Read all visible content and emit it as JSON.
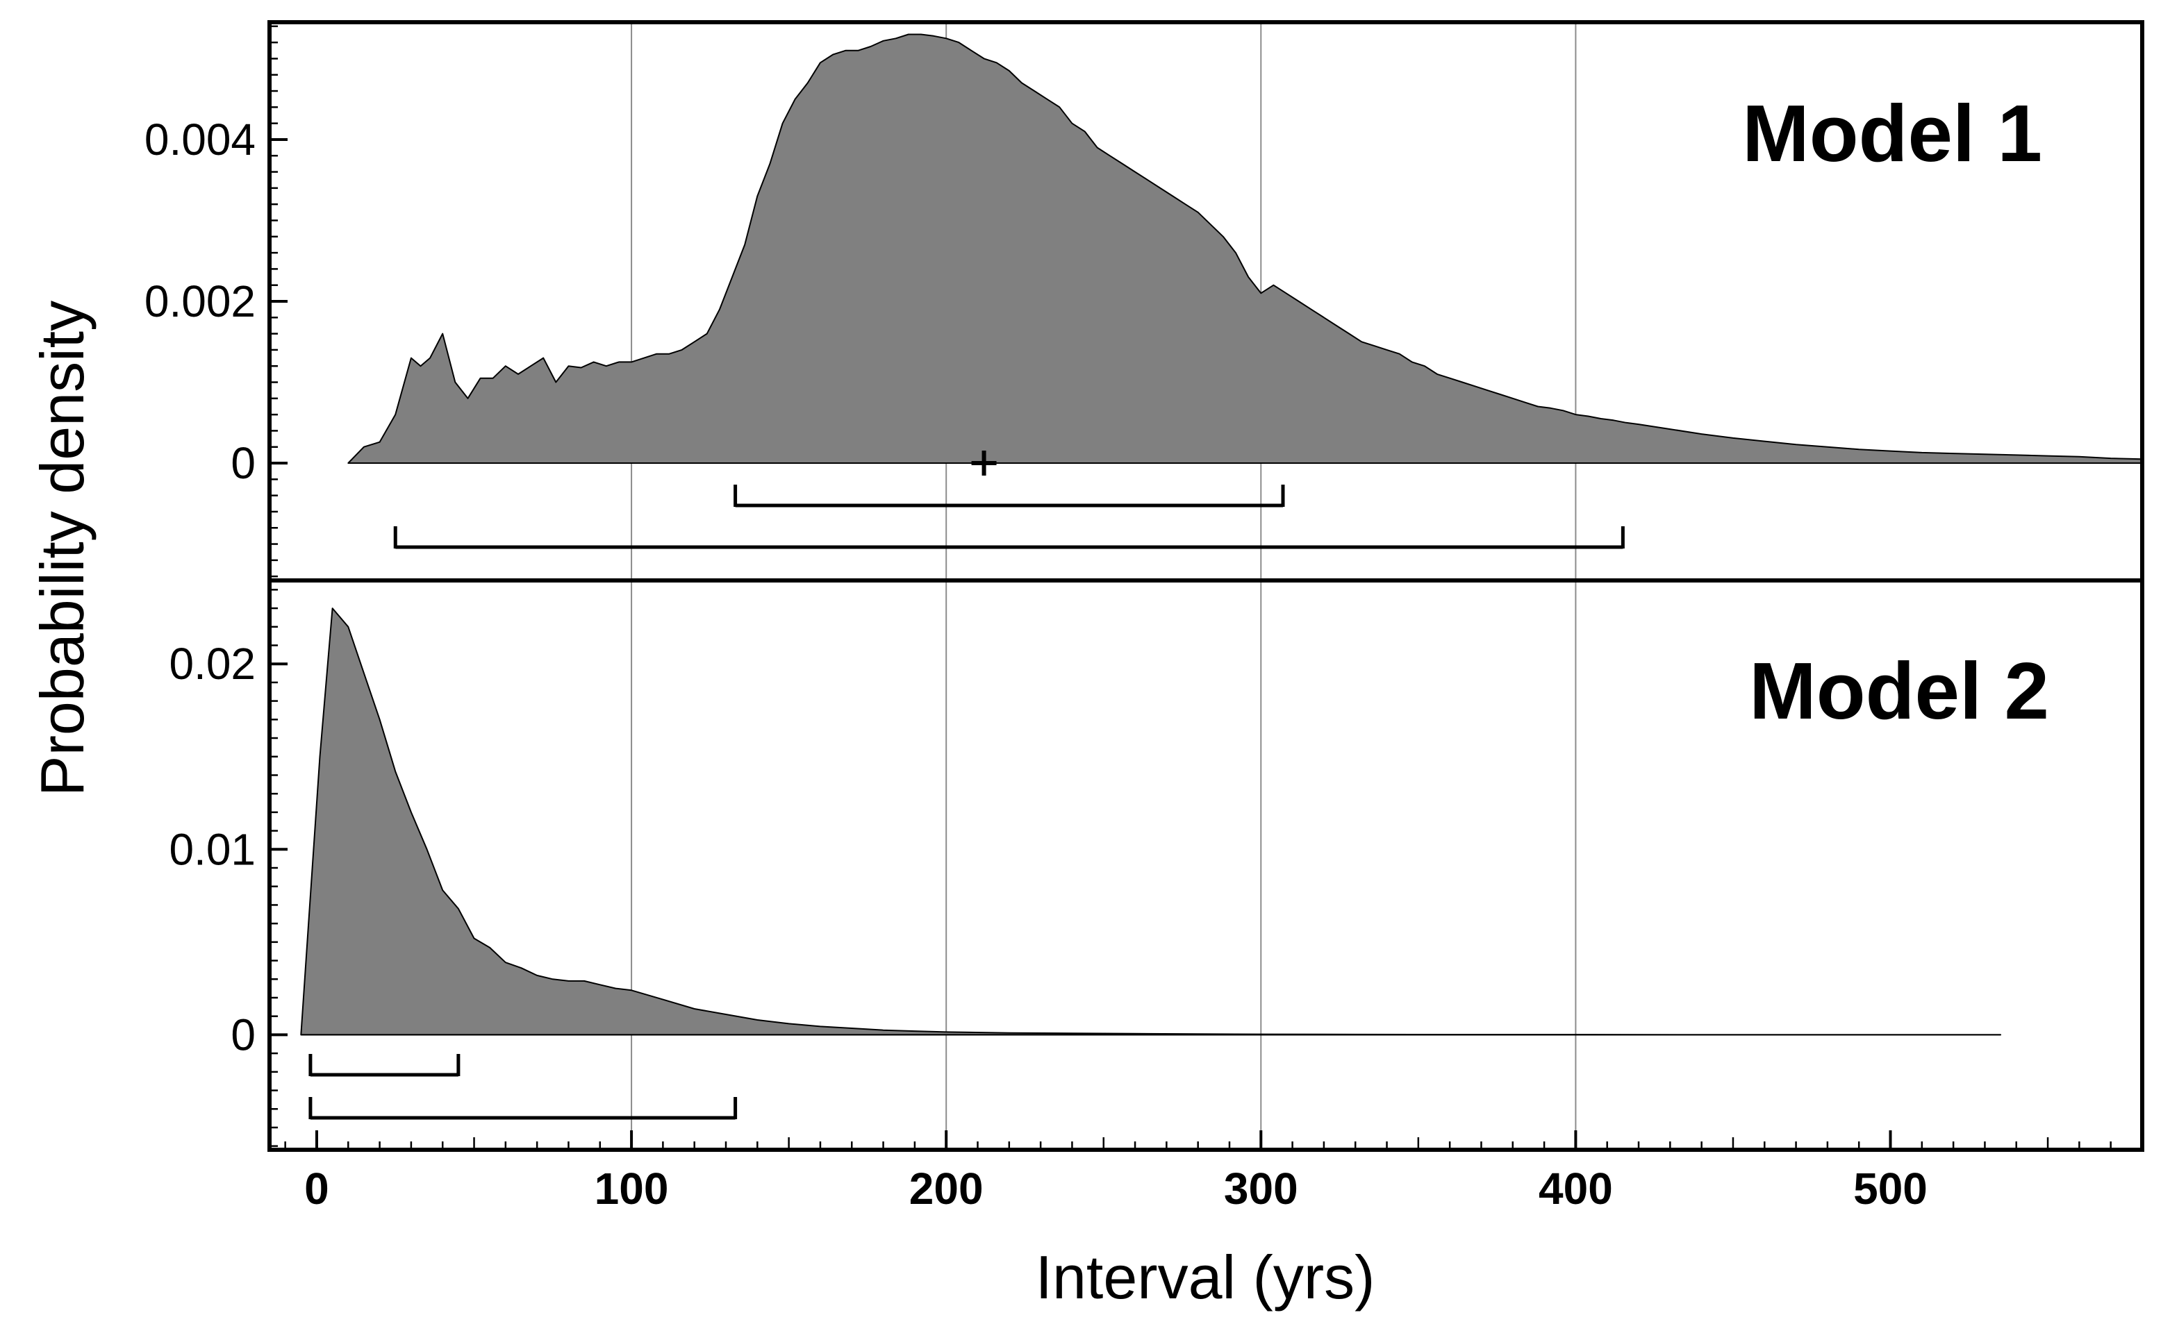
{
  "chart_data": {
    "type": "area",
    "xlabel": "Interval (yrs)",
    "ylabel": "Probability density",
    "xlim": [
      -15,
      580
    ],
    "x_ticks": [
      0,
      100,
      200,
      300,
      400,
      500
    ],
    "x_tick_labels": [
      "0",
      "100",
      "200",
      "300",
      "400",
      "500"
    ],
    "vertical_grid": [
      100,
      200,
      300,
      400
    ],
    "panels": [
      {
        "label": "Model 1",
        "ylim": [
          -0.00145,
          0.00545
        ],
        "y_ticks": [
          0,
          0.002,
          0.004
        ],
        "y_tick_labels": [
          "0",
          "0.002",
          "0.004"
        ],
        "fill_color": "#808080",
        "series": {
          "x": [
            10,
            15,
            20,
            25,
            30,
            33,
            36,
            40,
            44,
            48,
            52,
            56,
            60,
            64,
            68,
            72,
            76,
            80,
            84,
            88,
            92,
            96,
            100,
            104,
            108,
            112,
            116,
            120,
            124,
            128,
            132,
            136,
            140,
            144,
            148,
            152,
            156,
            160,
            164,
            168,
            172,
            176,
            180,
            184,
            188,
            192,
            196,
            200,
            204,
            208,
            212,
            216,
            220,
            224,
            228,
            232,
            236,
            240,
            244,
            248,
            252,
            256,
            260,
            264,
            268,
            272,
            276,
            280,
            284,
            288,
            292,
            296,
            300,
            304,
            308,
            312,
            316,
            320,
            324,
            328,
            332,
            336,
            340,
            344,
            348,
            352,
            356,
            360,
            364,
            368,
            372,
            376,
            380,
            384,
            388,
            392,
            396,
            400,
            404,
            408,
            412,
            416,
            420,
            430,
            440,
            450,
            460,
            470,
            480,
            490,
            500,
            510,
            520,
            530,
            540,
            550,
            560,
            570,
            580
          ],
          "y": [
            0,
            0.0002,
            0.00026,
            0.0006,
            0.0013,
            0.0012,
            0.0013,
            0.0016,
            0.001,
            0.0008,
            0.00105,
            0.00105,
            0.0012,
            0.0011,
            0.0012,
            0.0013,
            0.001,
            0.0012,
            0.00118,
            0.00125,
            0.0012,
            0.00125,
            0.00125,
            0.0013,
            0.00135,
            0.00135,
            0.0014,
            0.0015,
            0.0016,
            0.0019,
            0.0023,
            0.0027,
            0.0033,
            0.0037,
            0.0042,
            0.0045,
            0.0047,
            0.00495,
            0.00505,
            0.0051,
            0.0051,
            0.00515,
            0.00522,
            0.00525,
            0.0053,
            0.0053,
            0.00528,
            0.00525,
            0.0052,
            0.0051,
            0.005,
            0.00495,
            0.00485,
            0.0047,
            0.0046,
            0.0045,
            0.0044,
            0.0042,
            0.0041,
            0.0039,
            0.0038,
            0.0037,
            0.0036,
            0.0035,
            0.0034,
            0.0033,
            0.0032,
            0.0031,
            0.00295,
            0.0028,
            0.0026,
            0.0023,
            0.0021,
            0.0022,
            0.0021,
            0.002,
            0.0019,
            0.0018,
            0.0017,
            0.0016,
            0.0015,
            0.00145,
            0.0014,
            0.00135,
            0.00125,
            0.0012,
            0.0011,
            0.00105,
            0.001,
            0.00095,
            0.0009,
            0.00085,
            0.0008,
            0.00075,
            0.0007,
            0.00068,
            0.00065,
            0.0006,
            0.00058,
            0.00055,
            0.00053,
            0.0005,
            0.00048,
            0.00042,
            0.00036,
            0.00031,
            0.00027,
            0.00023,
            0.0002,
            0.00017,
            0.00015,
            0.00013,
            0.00012,
            0.00011,
            0.0001,
            9e-05,
            8e-05,
            6e-05,
            5e-05
          ]
        },
        "mean_marker_x": 212,
        "ranges": [
          {
            "from": 133,
            "to": 307
          },
          {
            "from": 25,
            "to": 415
          }
        ]
      },
      {
        "label": "Model 2",
        "ylim": [
          -0.0062,
          0.0245
        ],
        "y_ticks": [
          0,
          0.01,
          0.02
        ],
        "y_tick_labels": [
          "0",
          "0.01",
          "0.02"
        ],
        "fill_color": "#808080",
        "series": {
          "x": [
            -5,
            1,
            5,
            10,
            15,
            20,
            25,
            30,
            35,
            40,
            45,
            50,
            55,
            60,
            65,
            70,
            75,
            80,
            85,
            90,
            95,
            100,
            110,
            120,
            130,
            140,
            150,
            160,
            170,
            180,
            190,
            200,
            220,
            240,
            260,
            280,
            300,
            330,
            360,
            400,
            440,
            480,
            535
          ],
          "y": [
            0,
            0.015,
            0.023,
            0.022,
            0.0195,
            0.017,
            0.0142,
            0.012,
            0.01,
            0.0078,
            0.0068,
            0.0052,
            0.0047,
            0.0039,
            0.0036,
            0.0032,
            0.003,
            0.0029,
            0.0029,
            0.0027,
            0.0025,
            0.0024,
            0.0019,
            0.0014,
            0.0011,
            0.0008,
            0.0006,
            0.00045,
            0.00035,
            0.00025,
            0.0002,
            0.00015,
            0.0001,
            8e-05,
            6e-05,
            4e-05,
            3e-05,
            2e-05,
            1e-05,
            1e-05,
            0,
            0,
            0
          ]
        },
        "ranges": [
          {
            "from": -2,
            "to": 45
          },
          {
            "from": -2,
            "to": 133
          }
        ]
      }
    ]
  }
}
